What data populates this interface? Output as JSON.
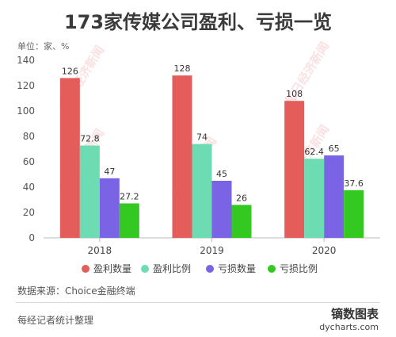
{
  "title": "173家传媒公司盈利、亏损一览",
  "unit_label": "单位：家、%",
  "source": "数据来源：Choice金融终端",
  "footer_note": "每经记者统计整理",
  "brand": {
    "name": "镝数图表",
    "site": "dycharts.com"
  },
  "watermark": "每日经济新闻",
  "chart_data": {
    "type": "bar",
    "categories": [
      "2018",
      "2019",
      "2020"
    ],
    "series": [
      {
        "name": "盈利数量",
        "values": [
          126,
          128,
          108
        ],
        "labels": [
          "126",
          "128",
          "108"
        ],
        "color": "#e35d5a"
      },
      {
        "name": "盈利比例",
        "values": [
          72.8,
          74,
          62.4
        ],
        "labels": [
          "72.8",
          "74",
          "62.4"
        ],
        "color": "#6ddcb2"
      },
      {
        "name": "亏损数量",
        "values": [
          47,
          45,
          65
        ],
        "labels": [
          "47",
          "45",
          "65"
        ],
        "color": "#7a63e4"
      },
      {
        "name": "亏损比例",
        "values": [
          27.2,
          26,
          37.6
        ],
        "labels": [
          "27.2",
          "26",
          "37.6"
        ],
        "color": "#33c921"
      }
    ],
    "ylim": [
      0,
      140
    ],
    "yticks": [
      0,
      20,
      40,
      60,
      80,
      100,
      120,
      140
    ],
    "grid": false,
    "legend_position": "bottom"
  }
}
